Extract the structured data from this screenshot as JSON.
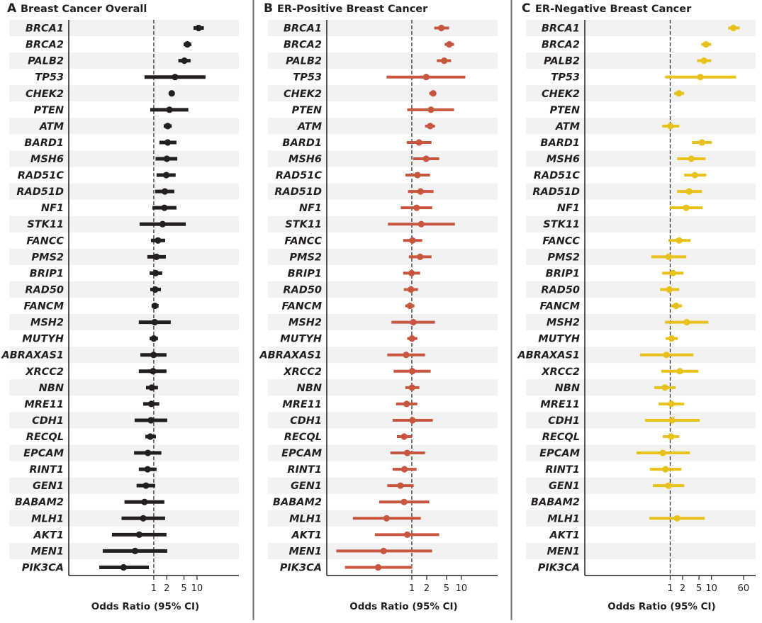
{
  "chart_data": [
    {
      "type": "forest",
      "letter": "A",
      "title": "Breast Cancer Overall",
      "xlabel": "Odds Ratio (95% CI)",
      "xscale": "log",
      "xlim": [
        0.0108,
        93
      ],
      "xticks": [
        1,
        2,
        5,
        10
      ],
      "reference_line": 1,
      "color": "#231f20",
      "genes": [
        "BRCA1",
        "BRCA2",
        "PALB2",
        "TP53",
        "CHEK2",
        "PTEN",
        "ATM",
        "BARD1",
        "MSH6",
        "RAD51C",
        "RAD51D",
        "NF1",
        "STK11",
        "FANCC",
        "PMS2",
        "BRIP1",
        "RAD50",
        "FANCM",
        "MSH2",
        "MUTYH",
        "ABRAXAS1",
        "XRCC2",
        "NBN",
        "MRE11",
        "CDH1",
        "RECQL",
        "EPCAM",
        "RINT1",
        "GEN1",
        "BABAM2",
        "MLH1",
        "AKT1",
        "MEN1",
        "PIK3CA"
      ],
      "or": [
        10.9,
        6.0,
        5.1,
        3.1,
        2.6,
        2.3,
        2.1,
        2.1,
        2.0,
        1.95,
        1.8,
        1.76,
        1.6,
        1.25,
        1.15,
        1.1,
        1.08,
        1.06,
        1.05,
        1.0,
        0.99,
        0.96,
        0.9,
        0.88,
        0.86,
        0.83,
        0.73,
        0.72,
        0.66,
        0.61,
        0.57,
        0.46,
        0.37,
        0.2
      ],
      "lower": [
        8.3,
        4.9,
        3.7,
        0.61,
        2.3,
        0.83,
        1.7,
        1.35,
        1.1,
        1.16,
        1.08,
        0.93,
        0.47,
        0.86,
        0.71,
        0.8,
        0.83,
        0.89,
        0.45,
        0.8,
        0.49,
        0.45,
        0.66,
        0.57,
        0.36,
        0.64,
        0.35,
        0.45,
        0.4,
        0.21,
        0.18,
        0.108,
        0.066,
        0.055
      ],
      "upper": [
        14.4,
        7.4,
        7.1,
        15.7,
        2.9,
        6.3,
        2.6,
        3.35,
        3.5,
        3.2,
        2.99,
        3.35,
        5.5,
        1.83,
        1.9,
        1.57,
        1.46,
        1.29,
        2.47,
        1.25,
        1.97,
        1.97,
        1.25,
        1.34,
        2.05,
        1.12,
        1.5,
        1.16,
        1.08,
        1.76,
        1.83,
        1.97,
        2.05,
        0.77
      ]
    },
    {
      "type": "forest",
      "letter": "B",
      "title": "ER-Positive Breast Cancer",
      "xlabel": "Odds Ratio (95% CI)",
      "xscale": "log",
      "xlim": [
        0.0193,
        53.7
      ],
      "xticks": [
        1,
        2,
        5,
        10
      ],
      "reference_line": 1,
      "color": "#c8553d",
      "genes": [
        "BRCA1",
        "BRCA2",
        "PALB2",
        "TP53",
        "CHEK2",
        "PTEN",
        "ATM",
        "BARD1",
        "MSH6",
        "RAD51C",
        "RAD51D",
        "NF1",
        "STK11",
        "FANCC",
        "PMS2",
        "BRIP1",
        "RAD50",
        "FANCM",
        "MSH2",
        "MUTYH",
        "ABRAXAS1",
        "XRCC2",
        "NBN",
        "MRE11",
        "CDH1",
        "RECQL",
        "EPCAM",
        "RINT1",
        "GEN1",
        "BABAM2",
        "MLH1",
        "AKT1",
        "MEN1",
        "PIK3CA"
      ],
      "or": [
        3.94,
        5.7,
        4.5,
        1.95,
        2.7,
        2.43,
        2.35,
        1.4,
        1.95,
        1.3,
        1.5,
        1.25,
        1.55,
        1.03,
        1.47,
        0.99,
        0.96,
        0.92,
        1.07,
        1.01,
        0.77,
        1.02,
        1.01,
        0.79,
        1.03,
        0.7,
        0.81,
        0.71,
        0.59,
        0.7,
        0.31,
        0.81,
        0.27,
        0.21
      ],
      "lower": [
        2.83,
        4.6,
        3.2,
        0.31,
        2.25,
        0.81,
        1.85,
        0.79,
        1.06,
        0.74,
        0.84,
        0.6,
        0.33,
        0.67,
        0.87,
        0.67,
        0.69,
        0.74,
        0.39,
        0.81,
        0.32,
        0.43,
        0.74,
        0.48,
        0.41,
        0.5,
        0.37,
        0.41,
        0.32,
        0.22,
        0.065,
        0.18,
        0.03,
        0.045
      ],
      "upper": [
        5.65,
        7.1,
        6.2,
        12.0,
        3.1,
        7.1,
        2.93,
        2.5,
        3.57,
        2.33,
        2.74,
        2.57,
        7.4,
        1.62,
        2.5,
        1.47,
        1.33,
        1.13,
        2.93,
        1.29,
        1.85,
        2.4,
        1.42,
        1.29,
        2.65,
        1.0,
        1.85,
        1.25,
        1.09,
        2.25,
        1.52,
        3.57,
        2.57,
        1.02
      ]
    },
    {
      "type": "forest",
      "letter": "C",
      "title": "ER-Negative Breast Cancer",
      "xlabel": "Odds Ratio (95% CI)",
      "xscale": "log",
      "xlim": [
        0.0085,
        118
      ],
      "xticks": [
        1,
        2,
        5,
        10,
        60
      ],
      "reference_line": 1,
      "color": "#e8c21a",
      "genes": [
        "BRCA1",
        "BRCA2",
        "PALB2",
        "TP53",
        "CHEK2",
        "PTEN",
        "ATM",
        "BARD1",
        "MSH6",
        "RAD51C",
        "RAD51D",
        "NF1",
        "STK11",
        "FANCC",
        "PMS2",
        "BRIP1",
        "RAD50",
        "FANCM",
        "MSH2",
        "MUTYH",
        "ABRAXAS1",
        "XRCC2",
        "NBN",
        "MRE11",
        "CDH1",
        "RECQL",
        "EPCAM",
        "RINT1",
        "GEN1",
        "BABAM2",
        "MLH1",
        "AKT1",
        "MEN1",
        "PIK3CA"
      ],
      "or": [
        34.2,
        7.4,
        6.6,
        5.4,
        1.63,
        null,
        1.01,
        5.9,
        3.25,
        3.96,
        2.88,
        2.43,
        null,
        1.65,
        0.92,
        1.16,
        0.95,
        1.39,
        2.53,
        1.08,
        0.81,
        1.72,
        0.75,
        1.07,
        1.11,
        1.05,
        0.66,
        0.77,
        0.91,
        null,
        1.47,
        null,
        null,
        null
      ],
      "lower": [
        25.6,
        5.7,
        4.5,
        0.75,
        1.25,
        null,
        0.64,
        3.4,
        1.47,
        2.18,
        1.47,
        0.99,
        null,
        0.91,
        0.35,
        0.64,
        0.57,
        1.03,
        0.75,
        0.78,
        0.186,
        0.61,
        0.41,
        0.52,
        0.246,
        0.66,
        0.153,
        0.32,
        0.38,
        null,
        0.31,
        null,
        null,
        null
      ],
      "upper": [
        48.3,
        9.9,
        9.9,
        39.6,
        2.18,
        null,
        1.65,
        10.3,
        7.2,
        7.5,
        5.9,
        6.1,
        null,
        3.12,
        2.46,
        2.1,
        1.65,
        1.94,
        8.4,
        1.53,
        3.66,
        4.83,
        1.36,
        2.18,
        5.2,
        1.65,
        3.0,
        1.86,
        2.18,
        null,
        6.9,
        null,
        null,
        null
      ]
    }
  ]
}
